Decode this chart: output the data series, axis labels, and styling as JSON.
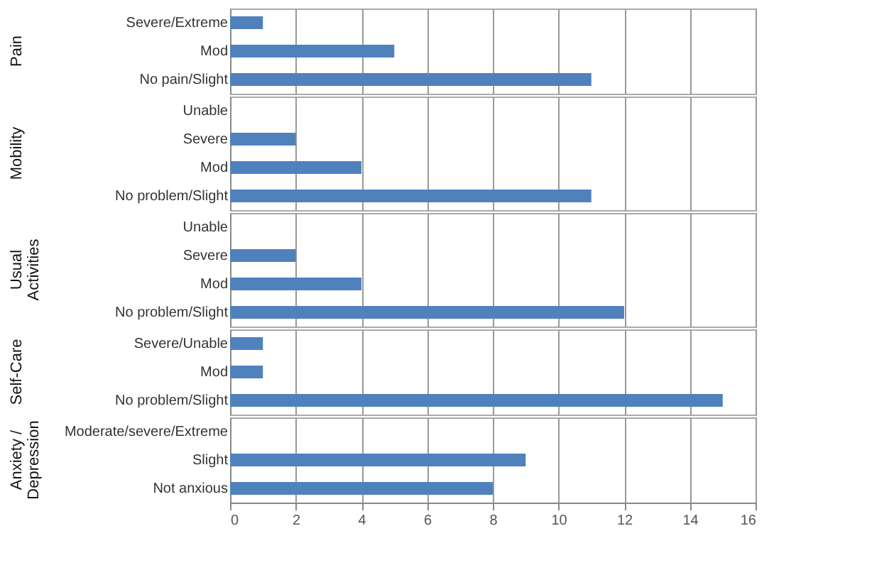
{
  "chart_data": [
    {
      "type": "bar",
      "orientation": "horizontal",
      "ylabel": "Pain",
      "categories": [
        "Severe/Extreme",
        "Mod",
        "No pain/Slight"
      ],
      "values": [
        1,
        5,
        11
      ],
      "color": "#4f81bd",
      "xlim": [
        0,
        16
      ],
      "xticks": [
        0,
        2,
        4,
        6,
        8,
        10,
        12,
        14,
        16
      ],
      "grid": "x",
      "tick_labels": "y"
    },
    {
      "type": "bar",
      "orientation": "horizontal",
      "ylabel": "Mobility",
      "categories": [
        "Unable",
        "Severe",
        "Mod",
        "No problem/Slight"
      ],
      "values": [
        0,
        2,
        4,
        11
      ],
      "color": "#4f81bd",
      "xlim": [
        0,
        16
      ],
      "xticks": [
        0,
        2,
        4,
        6,
        8,
        10,
        12,
        14,
        16
      ],
      "grid": "x",
      "tick_labels": "y"
    },
    {
      "type": "bar",
      "orientation": "horizontal",
      "ylabel": "Usual Activities",
      "categories": [
        "Unable",
        "Severe",
        "Mod",
        "No problem/Slight"
      ],
      "values": [
        0,
        2,
        4,
        12
      ],
      "color": "#4f81bd",
      "xlim": [
        0,
        16
      ],
      "xticks": [
        0,
        2,
        4,
        6,
        8,
        10,
        12,
        14,
        16
      ],
      "grid": "x",
      "tick_labels": "y"
    },
    {
      "type": "bar",
      "orientation": "horizontal",
      "ylabel": "Self-Care",
      "categories": [
        "Severe/Unable",
        "Mod",
        "No problem/Slight"
      ],
      "values": [
        1,
        1,
        15
      ],
      "color": "#4f81bd",
      "xlim": [
        0,
        16
      ],
      "xticks": [
        0,
        2,
        4,
        6,
        8,
        10,
        12,
        14,
        16
      ],
      "grid": "x",
      "tick_labels": "y"
    },
    {
      "type": "bar",
      "orientation": "horizontal",
      "ylabel": "Anxiety / Depression",
      "categories": [
        "Moderate/severe/Extreme",
        "Slight",
        "Not anxious"
      ],
      "values": [
        0,
        9,
        8
      ],
      "color": "#4f81bd",
      "xlim": [
        0,
        16
      ],
      "xticks": [
        0,
        2,
        4,
        6,
        8,
        10,
        12,
        14,
        16
      ],
      "grid": "x"
    }
  ]
}
